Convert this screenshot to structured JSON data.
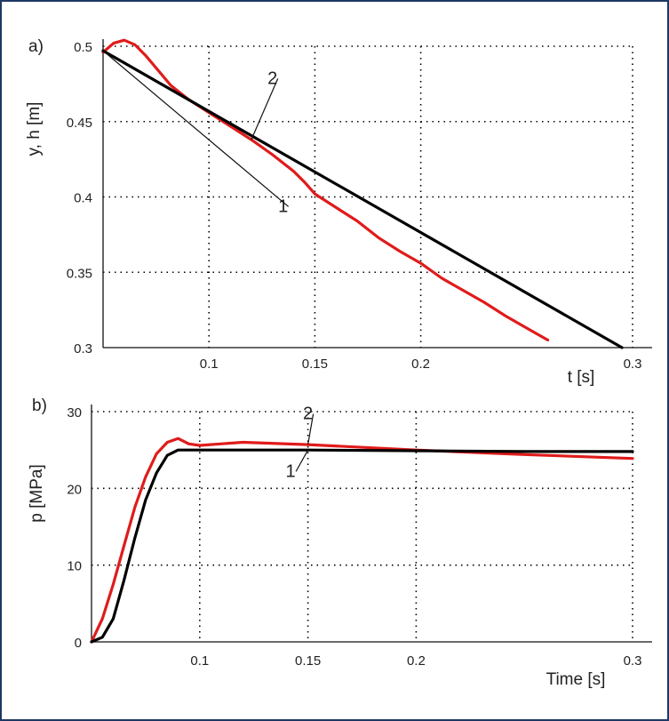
{
  "colors": {
    "series_1": "#000000",
    "series_2": "#e01b1b",
    "frame": "#1f3864"
  },
  "chart_data": [
    {
      "type": "line",
      "panel_label": "a)",
      "xlabel": "t [s]",
      "ylabel": "y, h [m]",
      "xlim": [
        0.05,
        0.3
      ],
      "ylim": [
        0.3,
        0.5
      ],
      "xticks": [
        0.1,
        0.15,
        0.2,
        0.3
      ],
      "xtick_labels": [
        "0.1",
        "0.15",
        "0.2",
        "0.3"
      ],
      "yticks": [
        0.3,
        0.35,
        0.4,
        0.45,
        0.5
      ],
      "ytick_labels": [
        "0.3",
        "0.35",
        "0.4",
        "0.45",
        "0.5"
      ],
      "grid": true,
      "series": [
        {
          "name": "1",
          "color": "#000000",
          "points": [
            [
              0.05,
              0.497
            ],
            [
              0.295,
              0.3
            ]
          ]
        },
        {
          "name": "2",
          "color": "#e01b1b",
          "points": [
            [
              0.05,
              0.496
            ],
            [
              0.055,
              0.502
            ],
            [
              0.06,
              0.504
            ],
            [
              0.065,
              0.501
            ],
            [
              0.07,
              0.494
            ],
            [
              0.076,
              0.484
            ],
            [
              0.082,
              0.474
            ],
            [
              0.09,
              0.465
            ],
            [
              0.1,
              0.456
            ],
            [
              0.11,
              0.447
            ],
            [
              0.12,
              0.438
            ],
            [
              0.13,
              0.428
            ],
            [
              0.14,
              0.417
            ],
            [
              0.145,
              0.41
            ],
            [
              0.15,
              0.402
            ],
            [
              0.16,
              0.393
            ],
            [
              0.17,
              0.384
            ],
            [
              0.18,
              0.373
            ],
            [
              0.19,
              0.364
            ],
            [
              0.2,
              0.356
            ],
            [
              0.21,
              0.346
            ],
            [
              0.22,
              0.338
            ],
            [
              0.23,
              0.33
            ],
            [
              0.24,
              0.321
            ],
            [
              0.25,
              0.313
            ],
            [
              0.26,
              0.305
            ]
          ]
        }
      ],
      "curve_labels": [
        {
          "text": "1",
          "x": 0.135,
          "y": 0.39
        },
        {
          "text": "2",
          "x": 0.13,
          "y": 0.475
        }
      ]
    },
    {
      "type": "line",
      "panel_label": "b)",
      "xlabel": "Time [s]",
      "ylabel": "p [MPa]",
      "xlim": [
        0.05,
        0.3
      ],
      "ylim": [
        0,
        30
      ],
      "xticks": [
        0.1,
        0.15,
        0.2,
        0.3
      ],
      "xtick_labels": [
        "0.1",
        "0.15",
        "0.2",
        "0.3"
      ],
      "yticks": [
        0,
        10,
        20,
        30
      ],
      "ytick_labels": [
        "0",
        "10",
        "20",
        "30"
      ],
      "grid": true,
      "series": [
        {
          "name": "1",
          "color": "#000000",
          "points": [
            [
              0.05,
              0.0
            ],
            [
              0.055,
              0.6
            ],
            [
              0.06,
              3.0
            ],
            [
              0.065,
              8.0
            ],
            [
              0.07,
              13.5
            ],
            [
              0.075,
              18.5
            ],
            [
              0.08,
              22.0
            ],
            [
              0.085,
              24.3
            ],
            [
              0.09,
              25.0
            ],
            [
              0.1,
              25.0
            ],
            [
              0.15,
              25.0
            ],
            [
              0.2,
              24.9
            ],
            [
              0.25,
              24.8
            ],
            [
              0.3,
              24.8
            ]
          ]
        },
        {
          "name": "2",
          "color": "#e01b1b",
          "points": [
            [
              0.05,
              0.0
            ],
            [
              0.055,
              3.0
            ],
            [
              0.06,
              7.5
            ],
            [
              0.065,
              12.5
            ],
            [
              0.07,
              17.5
            ],
            [
              0.075,
              21.5
            ],
            [
              0.08,
              24.5
            ],
            [
              0.085,
              26.0
            ],
            [
              0.09,
              26.5
            ],
            [
              0.095,
              25.8
            ],
            [
              0.1,
              25.6
            ],
            [
              0.12,
              26.0
            ],
            [
              0.15,
              25.7
            ],
            [
              0.2,
              25.0
            ],
            [
              0.25,
              24.4
            ],
            [
              0.3,
              23.9
            ]
          ]
        }
      ],
      "curve_labels": [
        {
          "text": "1",
          "x": 0.142,
          "y": 21.5
        },
        {
          "text": "2",
          "x": 0.15,
          "y": 29.0
        }
      ]
    }
  ]
}
